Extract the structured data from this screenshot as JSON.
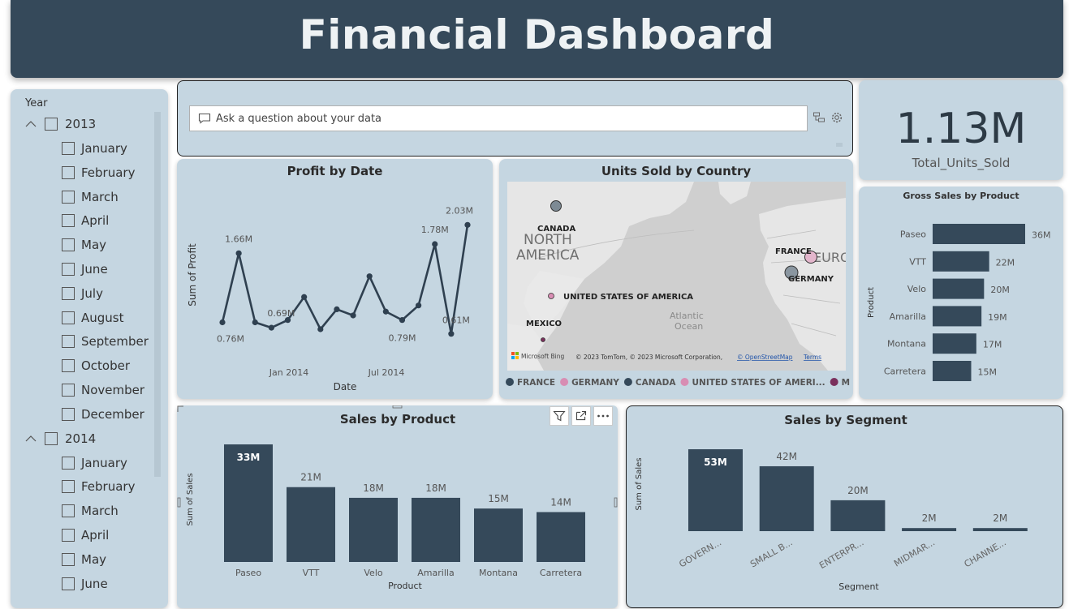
{
  "header": {
    "title": "Financial Dashboard"
  },
  "slicer": {
    "title": "Year",
    "groups": [
      {
        "year": "2013",
        "months": [
          "January",
          "February",
          "March",
          "April",
          "May",
          "June",
          "July",
          "August",
          "September",
          "October",
          "November",
          "December"
        ]
      },
      {
        "year": "2014",
        "months": [
          "January",
          "February",
          "March",
          "April",
          "May",
          "June"
        ]
      }
    ]
  },
  "qa": {
    "placeholder": "Ask a question about your data"
  },
  "kpi": {
    "value": "1.13M",
    "label": "Total_Units_Sold"
  },
  "profit_chart": {
    "title": "Profit by Date",
    "xlabel": "Date",
    "ylabel": "Sum of Profit",
    "x_ticks": [
      "Jan 2014",
      "Jul 2014"
    ],
    "point_labels": [
      "1.66M",
      "0.76M",
      "0.69M",
      "1.78M",
      "2.03M",
      "0.79M",
      "0.61M"
    ]
  },
  "map": {
    "title": "Units Sold by Country",
    "labels": {
      "canada": "CANADA",
      "usa": "UNITED STATES OF AMERICA",
      "mexico": "MEXICO",
      "france": "FRANCE",
      "germany": "GERMANY",
      "na1": "NORTH",
      "na2": "AMERICA",
      "ocean1": "Atlantic",
      "ocean2": "Ocean",
      "eur": "EURO"
    },
    "attribution": "© 2023 TomTom, © 2023 Microsoft Corporation,",
    "osm": "© OpenStreetMap",
    "terms": "Terms",
    "bing": "Microsoft Bing",
    "legend": [
      {
        "name": "FRANCE",
        "color": "#35495a"
      },
      {
        "name": "GERMANY",
        "color": "#d88db3"
      },
      {
        "name": "CANADA",
        "color": "#35495a"
      },
      {
        "name": "UNITED STATES OF AMERI...",
        "color": "#d88db3"
      },
      {
        "name": "MEXICO",
        "color": "#7a2f5c"
      }
    ]
  },
  "chart_data": [
    {
      "type": "line",
      "title": "Profit by Date",
      "xlabel": "Date",
      "ylabel": "Sum of Profit",
      "x": [
        "2013-09",
        "2013-10",
        "2013-11",
        "2013-12",
        "2014-01",
        "2014-02",
        "2014-03",
        "2014-04",
        "2014-05",
        "2014-06",
        "2014-07",
        "2014-08",
        "2014-09",
        "2014-10",
        "2014-11",
        "2014-12"
      ],
      "values": [
        0.76,
        1.66,
        0.76,
        0.69,
        0.79,
        1.09,
        0.67,
        0.93,
        0.85,
        1.36,
        0.9,
        0.79,
        0.98,
        1.78,
        0.61,
        2.03
      ],
      "unit": "M"
    },
    {
      "type": "bar",
      "orientation": "horizontal",
      "title": "Gross Sales by Product",
      "ylabel": "Product",
      "categories": [
        "Paseo",
        "VTT",
        "Velo",
        "Amarilla",
        "Montana",
        "Carretera"
      ],
      "values": [
        36,
        22,
        20,
        19,
        17,
        15
      ],
      "labels": [
        "36M",
        "22M",
        "20M",
        "19M",
        "17M",
        "15M"
      ]
    },
    {
      "type": "bar",
      "title": "Sales by Product",
      "xlabel": "Product",
      "ylabel": "Sum of Sales",
      "categories": [
        "Paseo",
        "VTT",
        "Velo",
        "Amarilla",
        "Montana",
        "Carretera"
      ],
      "values": [
        33,
        21,
        18,
        18,
        15,
        14
      ],
      "labels": [
        "33M",
        "21M",
        "18M",
        "18M",
        "15M",
        "14M"
      ]
    },
    {
      "type": "bar",
      "title": "Sales by Segment",
      "xlabel": "Segment",
      "ylabel": "Sum of Sales",
      "categories": [
        "GOVERN...",
        "SMALL B...",
        "ENTERPR...",
        "MIDMAR...",
        "CHANNE..."
      ],
      "values": [
        53,
        42,
        20,
        2,
        2
      ],
      "labels": [
        "53M",
        "42M",
        "20M",
        "2M",
        "2M"
      ]
    }
  ]
}
